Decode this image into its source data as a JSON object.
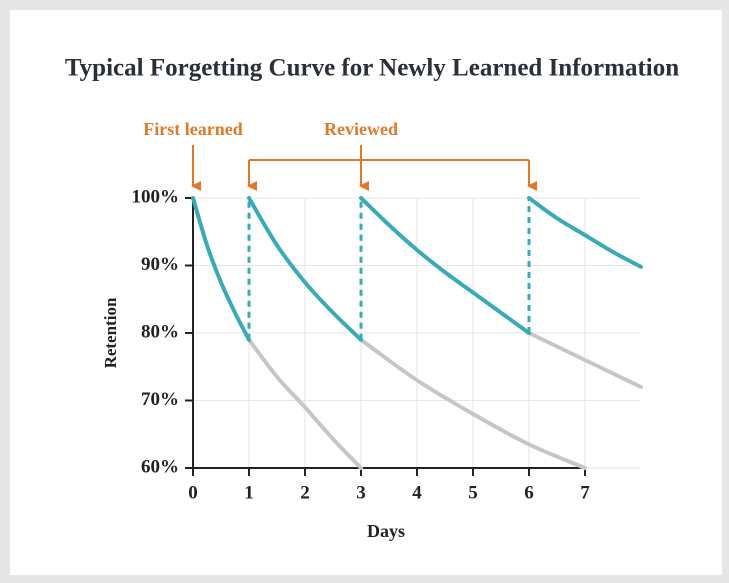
{
  "chart_data": {
    "type": "line",
    "title": "Typical Forgetting Curve for Newly Learned Information",
    "xlabel": "Days",
    "ylabel": "Retention",
    "xlim": [
      0,
      8
    ],
    "ylim": [
      60,
      100
    ],
    "xticks": [
      0,
      1,
      2,
      3,
      4,
      5,
      6,
      7
    ],
    "yticks": [
      {
        "value": 60,
        "label": "60%"
      },
      {
        "value": 70,
        "label": "70%"
      },
      {
        "value": 80,
        "label": "80%"
      },
      {
        "value": 90,
        "label": "90%"
      },
      {
        "value": 100,
        "label": "100%"
      }
    ],
    "grid": true,
    "series": [
      {
        "color": "#c6c6c6",
        "x": [
          1,
          1.5,
          2,
          2.5,
          3
        ],
        "values": [
          79,
          73.5,
          69,
          64.3,
          60
        ]
      },
      {
        "color": "#c6c6c6",
        "x": [
          3,
          4,
          5,
          6,
          7
        ],
        "values": [
          79,
          73,
          68,
          63.5,
          60
        ]
      },
      {
        "color": "#c6c6c6",
        "x": [
          6,
          7,
          8
        ],
        "values": [
          80,
          76,
          72
        ]
      },
      {
        "color": "#3aabb6",
        "x": [
          0,
          0.25,
          0.5,
          0.75,
          1
        ],
        "values": [
          100,
          93,
          87.5,
          83,
          79
        ]
      },
      {
        "color": "#3aabb6",
        "x": [
          1,
          1.5,
          2,
          2.5,
          3
        ],
        "values": [
          100,
          93,
          87.5,
          83,
          79
        ]
      },
      {
        "color": "#3aabb6",
        "x": [
          3,
          3.5,
          4,
          4.5,
          5,
          5.5,
          6
        ],
        "values": [
          100,
          96,
          92.3,
          89,
          86,
          83,
          80
        ]
      },
      {
        "color": "#3aabb6",
        "x": [
          6,
          6.5,
          7,
          7.5,
          8
        ],
        "values": [
          100,
          97,
          94.5,
          92,
          89.8
        ]
      }
    ],
    "annotations": {
      "first_learned": {
        "text": "First learned",
        "x": 0,
        "color": "#e07a2b"
      },
      "reviewed": {
        "text": "Reviewed",
        "x": [
          1,
          3,
          6
        ],
        "color": "#e07a2b"
      }
    }
  }
}
